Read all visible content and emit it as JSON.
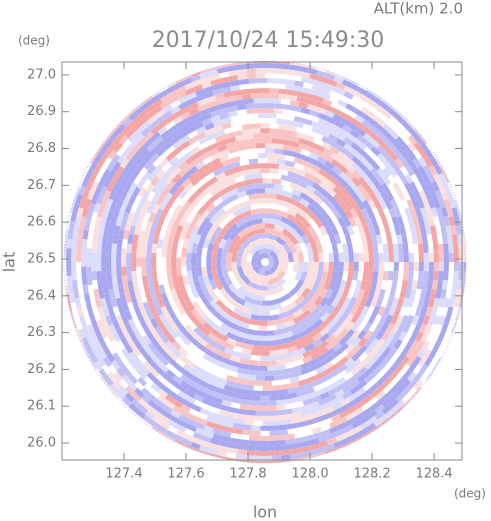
{
  "chart_data": {
    "type": "radar_ppi",
    "title": "2017/10/24 15:49:30",
    "annotation": "ALT(km) 2.0",
    "x_label": "lon",
    "y_label": "lat",
    "x_unit": "(deg)",
    "y_unit": "(deg)",
    "xlim": [
      127.2,
      128.49
    ],
    "ylim": [
      25.954,
      27.035
    ],
    "xticks": [
      127.4,
      127.6,
      127.8,
      {
        "value": 128,
        "label": "128.0"
      },
      128.2,
      128.4
    ],
    "yticks": [
      {
        "value": 26,
        "label": "26.0"
      },
      26.1,
      26.2,
      26.3,
      26.4,
      26.5,
      26.6,
      26.7,
      26.8,
      26.9,
      {
        "value": 27,
        "label": "27.0"
      }
    ]
  }
}
